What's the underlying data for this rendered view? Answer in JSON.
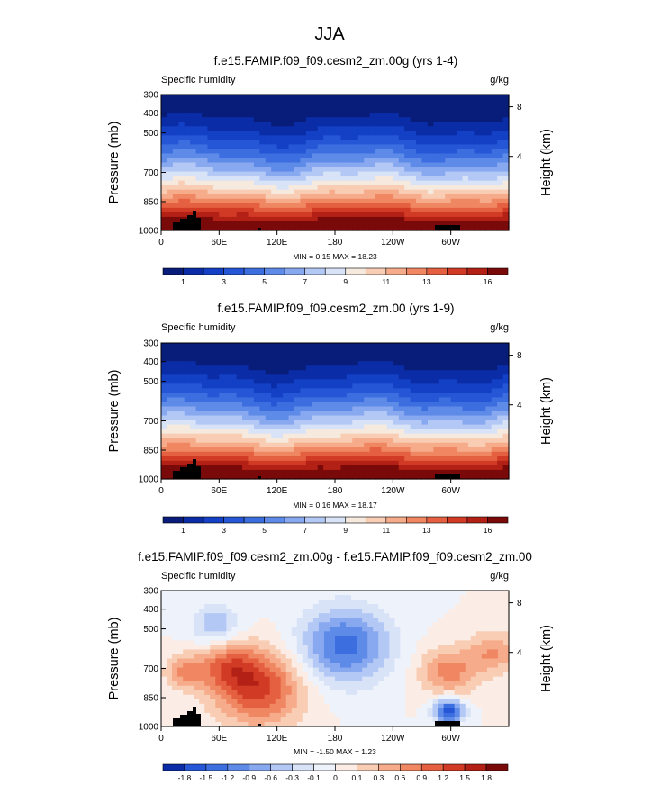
{
  "page_title": "JJA",
  "chart_data": [
    {
      "type": "heatmap",
      "title": "f.e15.FAMIP.f09_f09.cesm2_zm.00g (yrs 1-4)",
      "left_label": "Specific humidity",
      "right_label": "g/kg",
      "ylabel": "Pressure (mb)",
      "y2label": "Height (km)",
      "xticks": [
        "0",
        "60E",
        "120E",
        "180",
        "120W",
        "60W"
      ],
      "yticks": [
        "300",
        "400",
        "500",
        "700",
        "850",
        "1000"
      ],
      "y2ticks": [
        "8",
        "4"
      ],
      "stats": "MIN =   0.15  MAX =  18.23",
      "colorbar_ticks": [
        "1",
        "3",
        "5",
        "7",
        "9",
        "11",
        "13",
        "16"
      ]
    },
    {
      "type": "heatmap",
      "title": "f.e15.FAMIP.f09_f09.cesm2_zm.00 (yrs 1-9)",
      "left_label": "Specific humidity",
      "right_label": "g/kg",
      "ylabel": "Pressure (mb)",
      "y2label": "Height (km)",
      "xticks": [
        "0",
        "60E",
        "120E",
        "180",
        "120W",
        "60W"
      ],
      "yticks": [
        "300",
        "400",
        "500",
        "700",
        "850",
        "1000"
      ],
      "y2ticks": [
        "8",
        "4"
      ],
      "stats": "MIN =   0.16  MAX =  18.17",
      "colorbar_ticks": [
        "1",
        "3",
        "5",
        "7",
        "9",
        "11",
        "13",
        "16"
      ]
    },
    {
      "type": "heatmap",
      "title": "f.e15.FAMIP.f09_f09.cesm2_zm.00g - f.e15.FAMIP.f09_f09.cesm2_zm.00",
      "left_label": "Specific humidity",
      "right_label": "g/kg",
      "ylabel": "Pressure (mb)",
      "y2label": "Height (km)",
      "xticks": [
        "0",
        "60E",
        "120E",
        "180",
        "120W",
        "60W"
      ],
      "yticks": [
        "300",
        "400",
        "500",
        "700",
        "850",
        "1000"
      ],
      "y2ticks": [
        "8",
        "4"
      ],
      "stats": "MIN =  -1.50  MAX =   1.23",
      "colorbar_ticks": [
        "-1.8",
        "-1.5",
        "-1.2",
        "-0.9",
        "-0.6",
        "-0.3",
        "-0.1",
        "0",
        "0.1",
        "0.3",
        "0.6",
        "0.9",
        "1.2",
        "1.5",
        "1.8"
      ]
    }
  ],
  "colors": {
    "abs_palette": [
      "#081d7a",
      "#0a2ca6",
      "#1340c4",
      "#2456d6",
      "#3c6ee0",
      "#5e8ae8",
      "#88a8ef",
      "#b3c8f5",
      "#d8e3f8",
      "#f6e9de",
      "#f8cdb4",
      "#f6ab8a",
      "#f08763",
      "#e56040",
      "#d13b25",
      "#b32116",
      "#7a0a0a"
    ],
    "diff_palette": [
      "#0a2ca6",
      "#2456d6",
      "#3c6ee0",
      "#5e8ae8",
      "#88a8ef",
      "#b3c8f5",
      "#d8e3f8",
      "#eef2fb",
      "#fbede6",
      "#f8cdb4",
      "#f6ab8a",
      "#f08763",
      "#e56040",
      "#d13b25",
      "#b32116",
      "#7a0a0a"
    ],
    "terrain": "#000000"
  }
}
